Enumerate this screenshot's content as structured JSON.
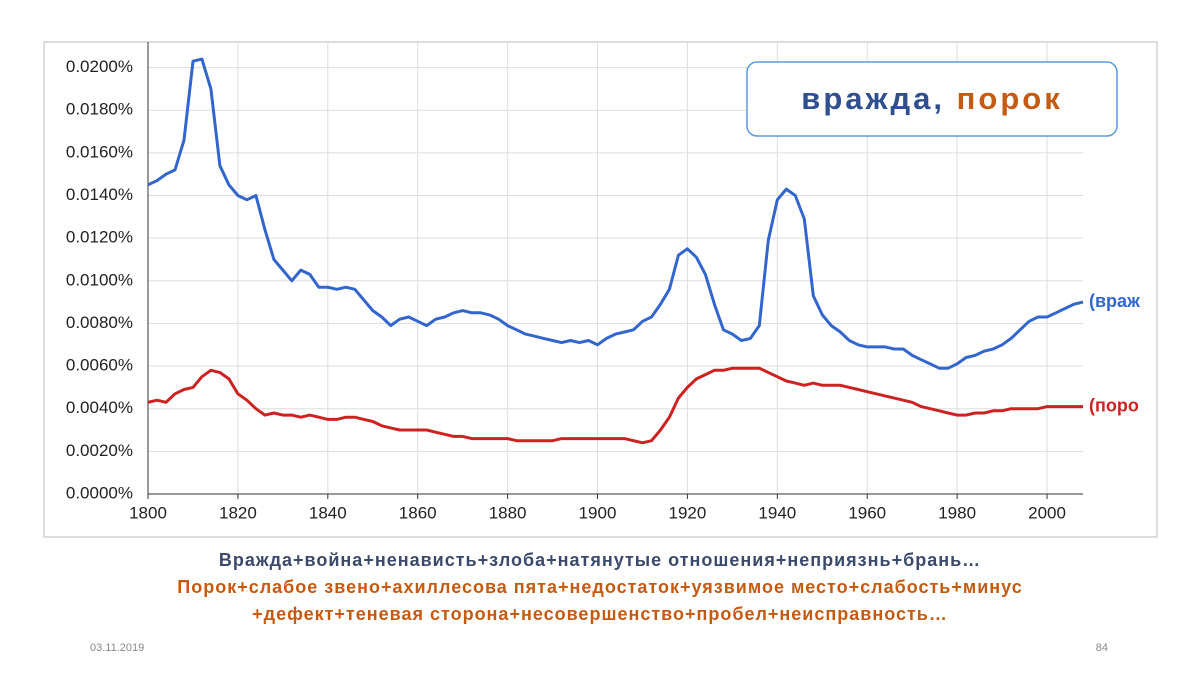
{
  "slide": {
    "legend_box": [
      "вражда,",
      "порок"
    ],
    "captions": [
      "Вражда+война+ненависть+злоба+натянутые отношения+неприязнь+брань…",
      "Порок+слабое звено+ахиллесова пята+недостаток+уязвимое место+слабость+минус",
      "+дефект+теневая сторона+несовершенство+пробел+неисправность…"
    ],
    "date": "03.11.2019",
    "page": "84"
  },
  "chart_data": {
    "type": "line",
    "x": [
      1800,
      1802,
      1804,
      1806,
      1808,
      1810,
      1812,
      1814,
      1816,
      1818,
      1820,
      1822,
      1824,
      1826,
      1828,
      1830,
      1832,
      1834,
      1836,
      1838,
      1840,
      1842,
      1844,
      1846,
      1848,
      1850,
      1852,
      1854,
      1856,
      1858,
      1860,
      1862,
      1864,
      1866,
      1868,
      1870,
      1872,
      1874,
      1876,
      1878,
      1880,
      1882,
      1884,
      1886,
      1888,
      1890,
      1892,
      1894,
      1896,
      1898,
      1900,
      1902,
      1904,
      1906,
      1908,
      1910,
      1912,
      1914,
      1916,
      1918,
      1920,
      1922,
      1924,
      1926,
      1928,
      1930,
      1932,
      1934,
      1936,
      1938,
      1940,
      1942,
      1944,
      1946,
      1948,
      1950,
      1952,
      1954,
      1956,
      1958,
      1960,
      1962,
      1964,
      1966,
      1968,
      1970,
      1972,
      1974,
      1976,
      1978,
      1980,
      1982,
      1984,
      1986,
      1988,
      1990,
      1992,
      1994,
      1996,
      1998,
      2000,
      2002,
      2004,
      2006,
      2008
    ],
    "series": [
      {
        "name": "(враж",
        "color": "#3366cc",
        "values": [
          0.0145,
          0.0147,
          0.015,
          0.0152,
          0.0166,
          0.0203,
          0.0204,
          0.019,
          0.0154,
          0.0145,
          0.014,
          0.0138,
          0.014,
          0.0124,
          0.011,
          0.0105,
          0.01,
          0.0105,
          0.0103,
          0.0097,
          0.0097,
          0.0096,
          0.0097,
          0.0096,
          0.0091,
          0.0086,
          0.0083,
          0.0079,
          0.0082,
          0.0083,
          0.0081,
          0.0079,
          0.0082,
          0.0083,
          0.0085,
          0.0086,
          0.0085,
          0.0085,
          0.0084,
          0.0082,
          0.0079,
          0.0077,
          0.0075,
          0.0074,
          0.0073,
          0.0072,
          0.0071,
          0.0072,
          0.0071,
          0.0072,
          0.007,
          0.0073,
          0.0075,
          0.0076,
          0.0077,
          0.0081,
          0.0083,
          0.0089,
          0.0096,
          0.0112,
          0.0115,
          0.0111,
          0.0103,
          0.0089,
          0.0077,
          0.0075,
          0.0072,
          0.0073,
          0.0079,
          0.0119,
          0.0138,
          0.0143,
          0.014,
          0.0129,
          0.0093,
          0.0084,
          0.0079,
          0.0076,
          0.0072,
          0.007,
          0.0069,
          0.0069,
          0.0069,
          0.0068,
          0.0068,
          0.0065,
          0.0063,
          0.0061,
          0.0059,
          0.0059,
          0.0061,
          0.0064,
          0.0065,
          0.0067,
          0.0068,
          0.007,
          0.0073,
          0.0077,
          0.0081,
          0.0083,
          0.0083,
          0.0085,
          0.0087,
          0.0089,
          0.009
        ]
      },
      {
        "name": "(поро",
        "color": "#cc2222",
        "values": [
          0.0043,
          0.0044,
          0.0043,
          0.0047,
          0.0049,
          0.005,
          0.0055,
          0.0058,
          0.0057,
          0.0054,
          0.0047,
          0.0044,
          0.004,
          0.0037,
          0.0038,
          0.0037,
          0.0037,
          0.0036,
          0.0037,
          0.0036,
          0.0035,
          0.0035,
          0.0036,
          0.0036,
          0.0035,
          0.0034,
          0.0032,
          0.0031,
          0.003,
          0.003,
          0.003,
          0.003,
          0.0029,
          0.0028,
          0.0027,
          0.0027,
          0.0026,
          0.0026,
          0.0026,
          0.0026,
          0.0026,
          0.0025,
          0.0025,
          0.0025,
          0.0025,
          0.0025,
          0.0026,
          0.0026,
          0.0026,
          0.0026,
          0.0026,
          0.0026,
          0.0026,
          0.0026,
          0.0025,
          0.0024,
          0.0025,
          0.003,
          0.0036,
          0.0045,
          0.005,
          0.0054,
          0.0056,
          0.0058,
          0.0058,
          0.0059,
          0.0059,
          0.0059,
          0.0059,
          0.0057,
          0.0055,
          0.0053,
          0.0052,
          0.0051,
          0.0052,
          0.0051,
          0.0051,
          0.0051,
          0.005,
          0.0049,
          0.0048,
          0.0047,
          0.0046,
          0.0045,
          0.0044,
          0.0043,
          0.0041,
          0.004,
          0.0039,
          0.0038,
          0.0037,
          0.0037,
          0.0038,
          0.0038,
          0.0039,
          0.0039,
          0.004,
          0.004,
          0.004,
          0.004,
          0.0041,
          0.0041,
          0.0041,
          0.0041,
          0.0041
        ]
      }
    ],
    "xlim": [
      1800,
      2008
    ],
    "ylim": [
      0,
      0.0212
    ],
    "xticks": [
      1800,
      1820,
      1840,
      1860,
      1880,
      1900,
      1920,
      1940,
      1960,
      1980,
      2000
    ],
    "yticks": [
      {
        "value": 0,
        "label": "0.0000%"
      },
      {
        "value": 0.002,
        "label": "0.0020%"
      },
      {
        "value": 0.004,
        "label": "0.0040%"
      },
      {
        "value": 0.006,
        "label": "0.0060%"
      },
      {
        "value": 0.008,
        "label": "0.0080%"
      },
      {
        "value": 0.01,
        "label": "0.0100%"
      },
      {
        "value": 0.012,
        "label": "0.0120%"
      },
      {
        "value": 0.014,
        "label": "0.0140%"
      },
      {
        "value": 0.016,
        "label": "0.0160%"
      },
      {
        "value": 0.018,
        "label": "0.0180%"
      },
      {
        "value": 0.02,
        "label": "0.0200%"
      }
    ],
    "grid": true
  }
}
